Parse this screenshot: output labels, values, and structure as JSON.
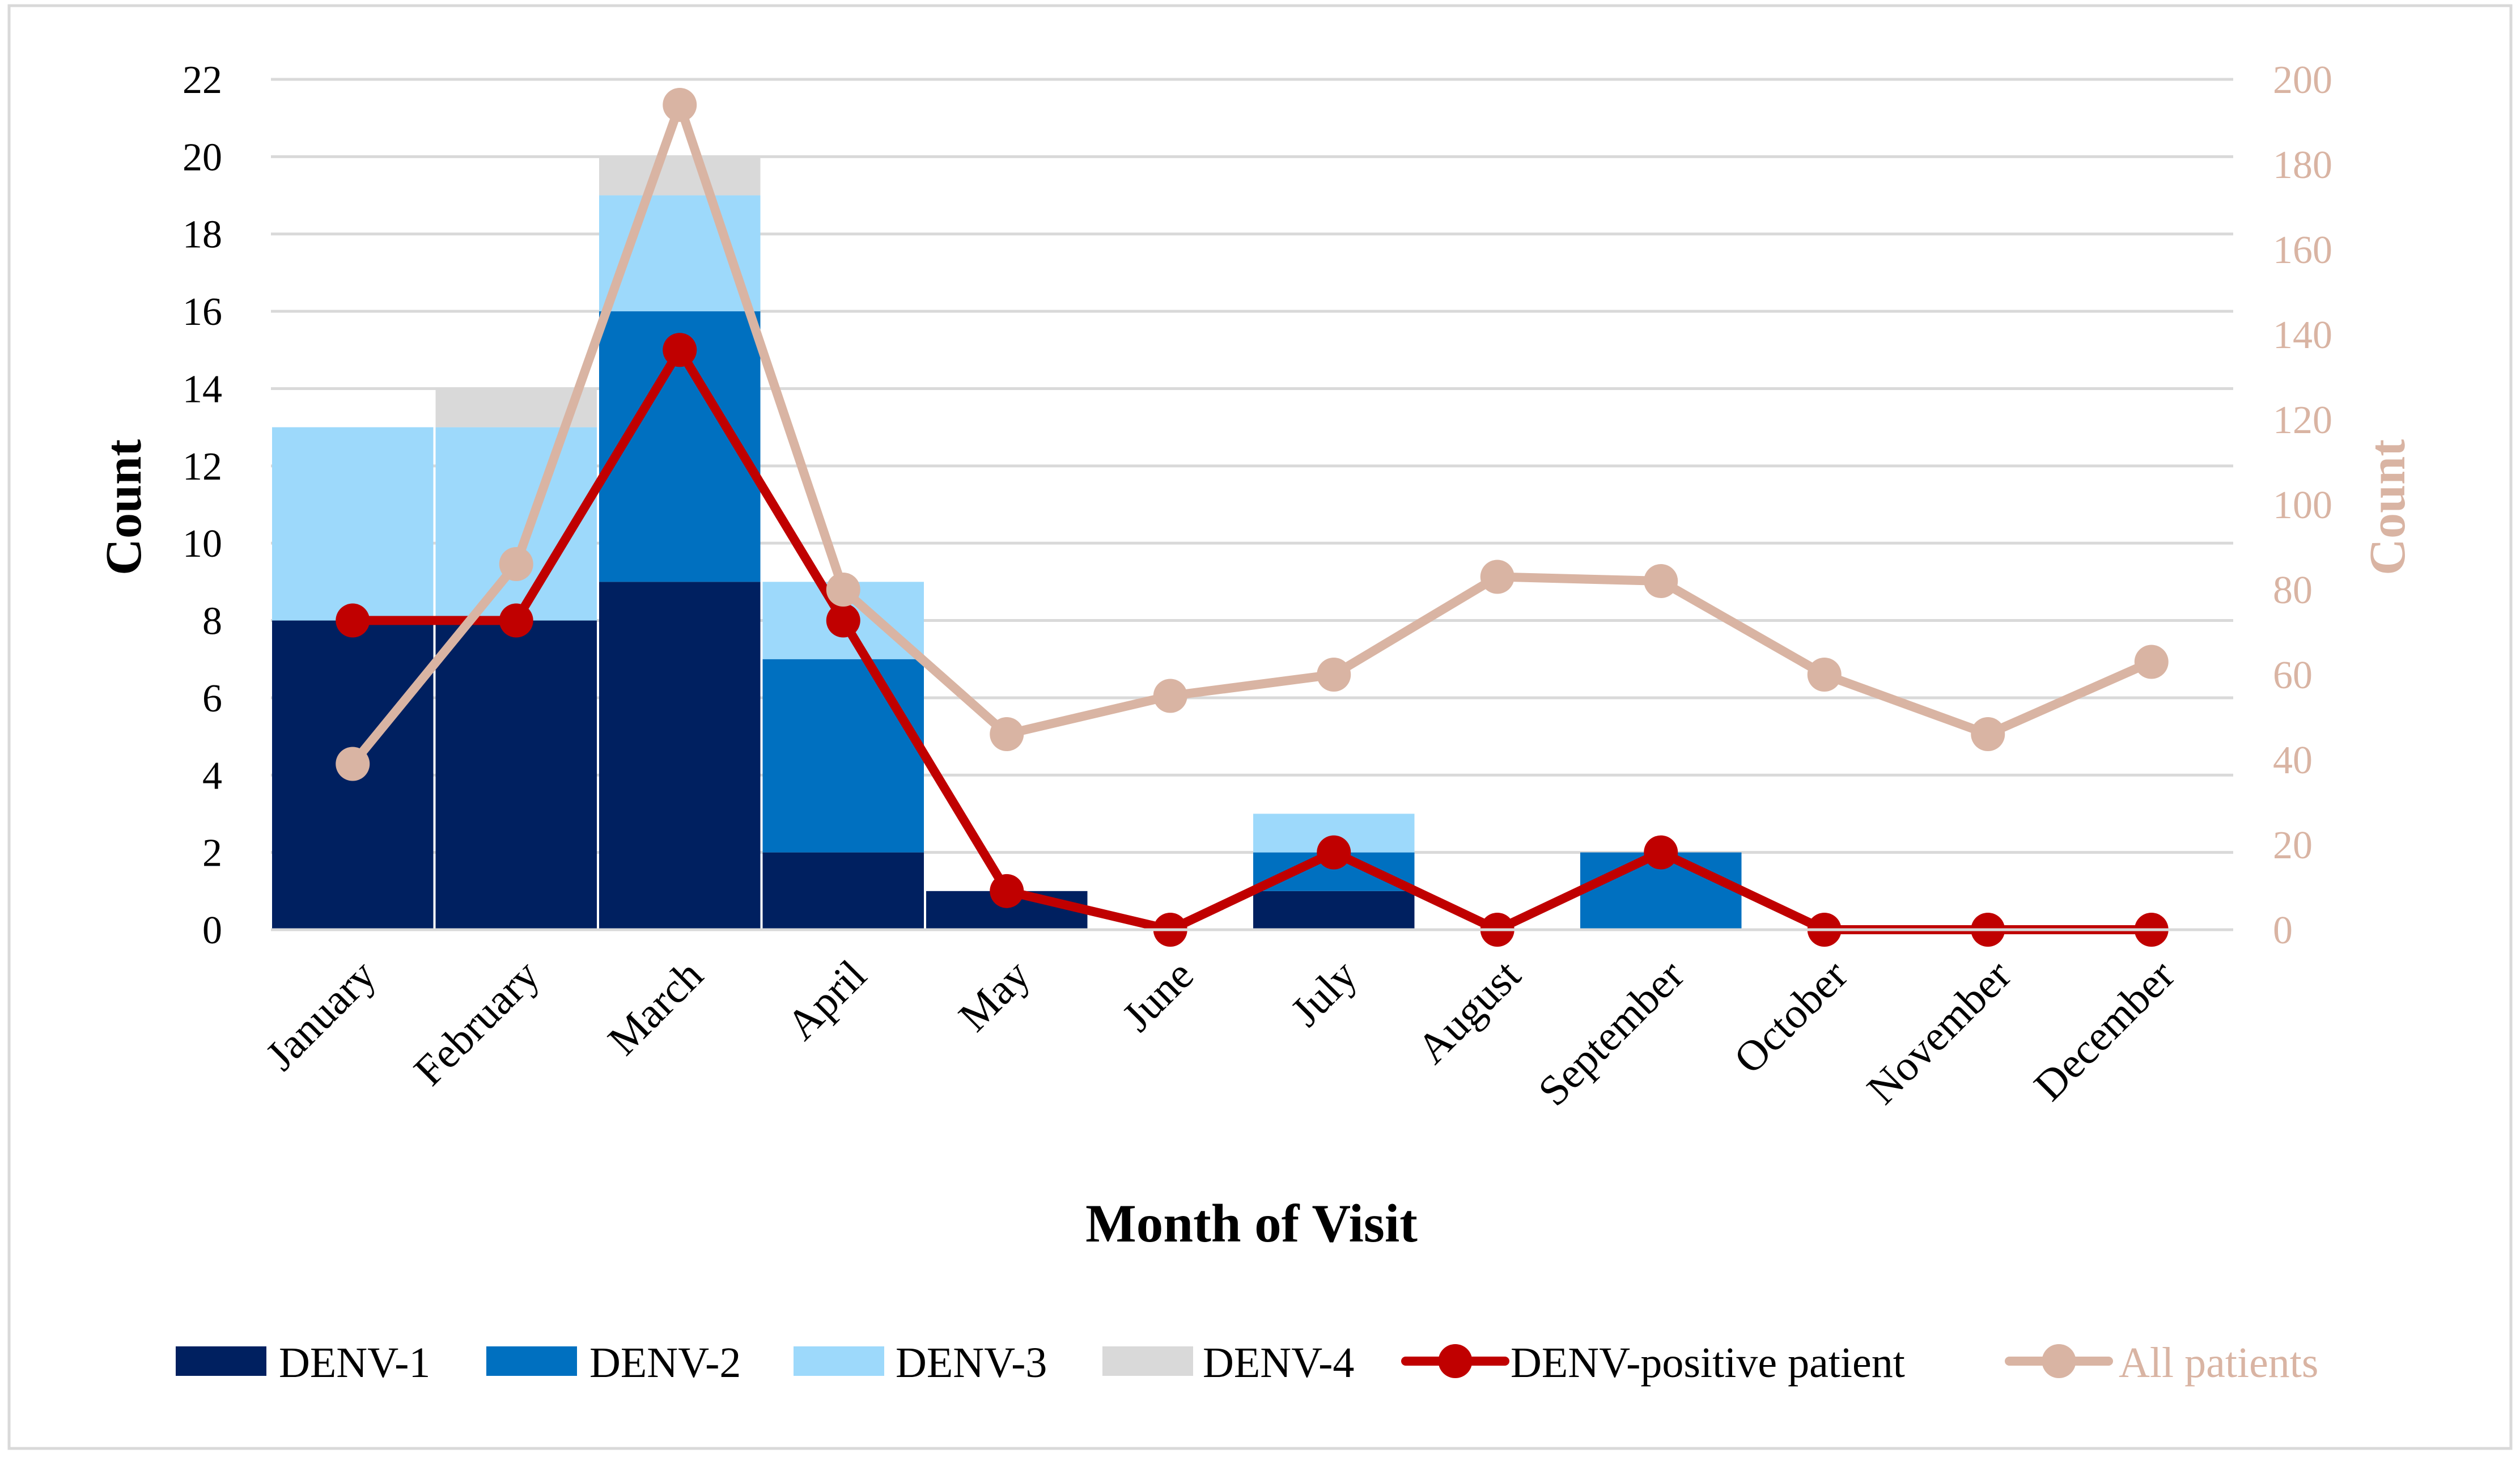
{
  "chart_data": {
    "type": "bar",
    "subtype": "stacked-bar-with-lines",
    "title": "",
    "xlabel": "Month of Visit",
    "ylabel": "Count",
    "y2label": "Count",
    "ylim": [
      0,
      22
    ],
    "yticks": [
      "0",
      "2",
      "4",
      "6",
      "8",
      "10",
      "12",
      "14",
      "16",
      "18",
      "20",
      "22"
    ],
    "y2lim": [
      0,
      200
    ],
    "y2ticks": [
      "0",
      "20",
      "40",
      "60",
      "80",
      "100",
      "120",
      "140",
      "160",
      "180",
      "200"
    ],
    "grid": true,
    "legend_position": "bottom",
    "categories": [
      "January",
      "February",
      "March",
      "April",
      "May",
      "June",
      "July",
      "August",
      "September",
      "October",
      "November",
      "December"
    ],
    "bar_series": [
      {
        "name": "DENV-1",
        "color": "#002060",
        "values": [
          8,
          8,
          9,
          2,
          1,
          0,
          1,
          0,
          0,
          0,
          0,
          0
        ]
      },
      {
        "name": "DENV-2",
        "color": "#0070C0",
        "values": [
          0,
          0,
          7,
          5,
          0,
          0,
          1,
          0,
          2,
          0,
          0,
          0
        ]
      },
      {
        "name": "DENV-3",
        "color": "#9DD9FB",
        "values": [
          5,
          5,
          3,
          2,
          0,
          0,
          1,
          0,
          0,
          0,
          0,
          0
        ]
      },
      {
        "name": "DENV-4",
        "color": "#D9D9D9",
        "values": [
          0,
          1,
          1,
          0,
          0,
          0,
          0,
          0,
          0,
          0,
          0,
          0
        ]
      }
    ],
    "line_series": [
      {
        "name": "DENV-positive patient",
        "axis": "left",
        "color": "#C00000",
        "values": [
          8,
          8,
          15,
          8,
          1,
          0,
          2,
          0,
          2,
          0,
          0,
          0
        ]
      },
      {
        "name": "All patients",
        "axis": "right",
        "color": "#D9B4A3",
        "values": [
          39,
          86,
          194,
          80,
          46,
          55,
          60,
          83,
          82,
          60,
          46,
          63
        ]
      }
    ]
  }
}
